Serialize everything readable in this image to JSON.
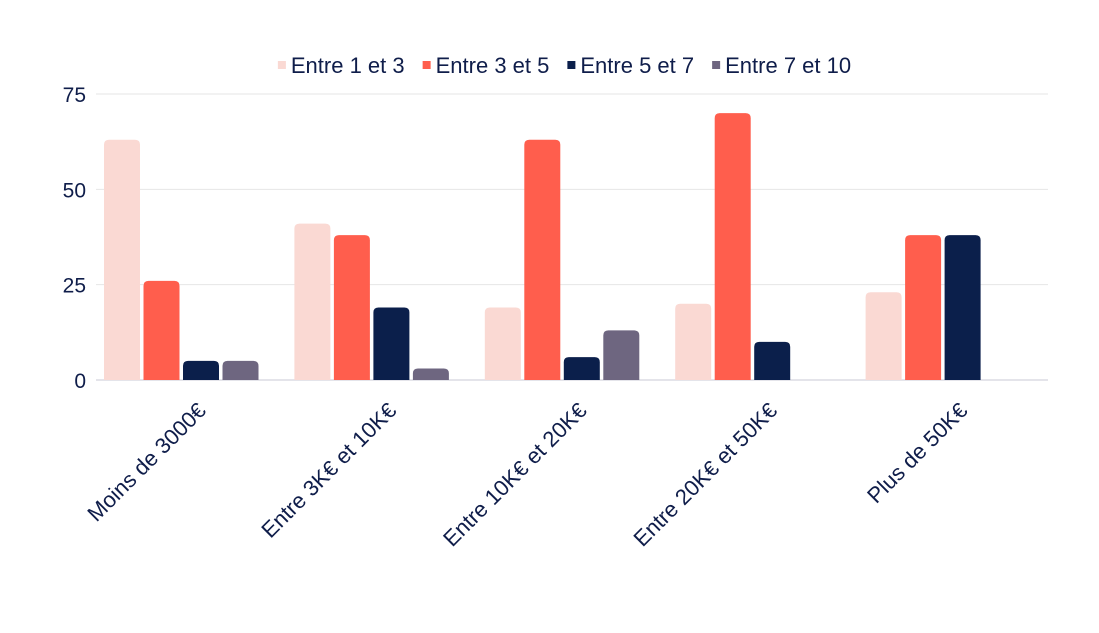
{
  "chart_data": {
    "type": "bar",
    "title": "",
    "xlabel": "",
    "ylabel": "",
    "ylim": [
      0,
      75
    ],
    "yticks": [
      0,
      25,
      50,
      75
    ],
    "grid": true,
    "legend_position": "top-center",
    "categories": [
      "Moins de 3000€",
      "Entre 3K€ et 10K€",
      "Entre 10K€ et 20K€",
      "Entre 20K€ et 50K€",
      "Plus de 50K€"
    ],
    "series": [
      {
        "name": "Entre 1 et 3",
        "color": "#fad9d3",
        "values": [
          63,
          41,
          19,
          20,
          23
        ]
      },
      {
        "name": "Entre 3 et 5",
        "color": "#ff5e4d",
        "values": [
          26,
          38,
          63,
          70,
          38
        ]
      },
      {
        "name": "Entre 5 et 7",
        "color": "#0b1f4b",
        "values": [
          5,
          19,
          6,
          10,
          38
        ]
      },
      {
        "name": "Entre 7 et 10",
        "color": "#6e6680",
        "values": [
          5,
          3,
          13,
          0,
          0
        ]
      }
    ]
  }
}
